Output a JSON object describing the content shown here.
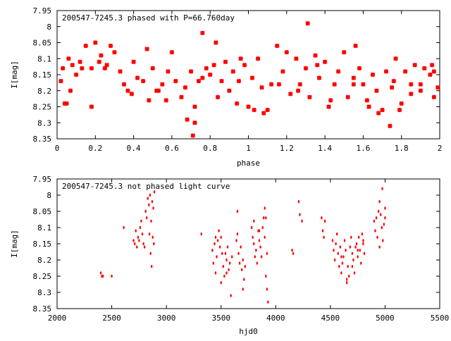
{
  "chart_data": [
    {
      "type": "scatter",
      "title": "200547-7245.3 phased with P=66.760day",
      "xlabel": "phase",
      "ylabel": "I[mag]",
      "xlim": [
        0,
        2
      ],
      "ylim": [
        8.35,
        7.95
      ],
      "y_inverted": true,
      "grid": false,
      "xticks": [
        "0",
        "0.2",
        "0.4",
        "0.6",
        "0.8",
        "1",
        "1.2",
        "1.4",
        "1.6",
        "1.8",
        "2"
      ],
      "yticks": [
        "7.95",
        "8",
        "8.05",
        "8.1",
        "8.15",
        "8.2",
        "8.25",
        "8.3",
        "8.35"
      ],
      "marker_color": "#ff0000",
      "series": [
        {
          "x": [
            0.02,
            0.04,
            0.06,
            0.08,
            0.1,
            0.03,
            0.05,
            0.07,
            0.12,
            0.15,
            0.18,
            0.2,
            0.22,
            0.25,
            0.28,
            0.3,
            0.33,
            0.35,
            0.37,
            0.4,
            0.42,
            0.45,
            0.47,
            0.5,
            0.52,
            0.55,
            0.58,
            0.6,
            0.62,
            0.65,
            0.67,
            0.7,
            0.72,
            0.74,
            0.76,
            0.78,
            0.8,
            0.82,
            0.84,
            0.86,
            0.88,
            0.9,
            0.92,
            0.95,
            0.98,
            1.0,
            1.02,
            1.05,
            1.07,
            1.1,
            1.12,
            1.15,
            1.18,
            1.2,
            1.22,
            1.25,
            1.27,
            1.3,
            1.32,
            1.35,
            1.37,
            1.4,
            1.42,
            1.45,
            1.47,
            1.5,
            1.52,
            1.55,
            1.58,
            1.6,
            1.62,
            1.65,
            1.67,
            1.7,
            1.72,
            1.75,
            1.77,
            1.8,
            1.82,
            1.85,
            1.87,
            1.9,
            1.92,
            1.95,
            1.97,
            1.99,
            0.18,
            0.26,
            0.48,
            0.53,
            0.68,
            0.71,
            0.72,
            0.83,
            0.94,
            1.03,
            1.08,
            1.26,
            1.31,
            1.43,
            1.55,
            1.63,
            1.68,
            1.74,
            1.79,
            1.85,
            1.9,
            1.97,
            0.13,
            0.23,
            0.39,
            0.57,
            0.76,
            0.96,
            1.16,
            1.36,
            1.56,
            1.76,
            1.96
          ],
          "y": [
            8.17,
            8.24,
            8.1,
            8.12,
            8.15,
            8.13,
            8.24,
            8.2,
            8.11,
            8.06,
            8.13,
            8.05,
            8.11,
            8.13,
            8.06,
            8.08,
            8.14,
            8.18,
            8.2,
            8.11,
            8.16,
            8.17,
            8.07,
            8.13,
            8.2,
            8.18,
            8.14,
            8.08,
            8.17,
            8.22,
            8.19,
            8.14,
            8.25,
            8.17,
            8.16,
            8.13,
            8.15,
            8.12,
            8.22,
            8.17,
            8.11,
            8.2,
            8.14,
            8.17,
            8.12,
            8.25,
            8.16,
            8.1,
            8.19,
            8.26,
            8.18,
            8.06,
            8.14,
            8.08,
            8.21,
            8.1,
            8.18,
            8.13,
            8.22,
            8.09,
            8.16,
            8.11,
            8.25,
            8.18,
            8.14,
            8.08,
            8.22,
            8.16,
            8.13,
            8.18,
            8.23,
            8.15,
            8.2,
            8.26,
            8.14,
            8.19,
            8.1,
            8.24,
            8.14,
            8.21,
            8.12,
            8.18,
            8.13,
            8.15,
            8.22,
            8.19,
            8.25,
            8.12,
            8.23,
            8.2,
            8.29,
            8.34,
            8.3,
            8.05,
            8.24,
            8.26,
            8.27,
            8.2,
            7.99,
            8.23,
            8.18,
            8.25,
            8.27,
            8.31,
            8.26,
            8.18,
            8.2,
            8.14,
            8.13,
            8.09,
            8.21,
            8.23,
            8.02,
            8.1,
            8.18,
            8.12,
            8.06,
            8.17,
            8.12
          ]
        }
      ]
    },
    {
      "type": "scatter",
      "title": "200547-7245.3 not phased light curve",
      "xlabel": "hjd0",
      "ylabel": "I[mag]",
      "xlim": [
        2000,
        5500
      ],
      "ylim": [
        8.35,
        7.95
      ],
      "y_inverted": true,
      "grid": false,
      "xticks": [
        "2000",
        "2500",
        "3000",
        "3500",
        "4000",
        "4500",
        "5000",
        "5500"
      ],
      "yticks": [
        "7.95",
        "8",
        "8.05",
        "8.1",
        "8.15",
        "8.2",
        "8.25",
        "8.3",
        "8.35"
      ],
      "marker_color": "#ff0000",
      "series": [
        {
          "x": [
            2400,
            2410,
            2420,
            2500,
            2610,
            2700,
            2710,
            2720,
            2730,
            2740,
            2750,
            2760,
            2770,
            2780,
            2790,
            2800,
            2810,
            2820,
            2830,
            2840,
            2850,
            2860,
            2870,
            2880,
            2890,
            2845,
            2855,
            2865,
            2875,
            2885,
            3320,
            3420,
            3430,
            3440,
            3450,
            3460,
            3470,
            3480,
            3490,
            3500,
            3510,
            3520,
            3530,
            3540,
            3550,
            3560,
            3570,
            3580,
            3590,
            3450,
            3500,
            3550,
            3600,
            3640,
            3650,
            3660,
            3670,
            3680,
            3690,
            3700,
            3710,
            3720,
            3650,
            3700,
            3780,
            3790,
            3800,
            3810,
            3820,
            3830,
            3840,
            3850,
            3860,
            3870,
            3880,
            3890,
            3900,
            3910,
            3920,
            3930,
            3800,
            3850,
            3900,
            3910,
            3920,
            4150,
            4160,
            4210,
            4220,
            4240,
            4420,
            4430,
            4440,
            4450,
            4520,
            4530,
            4540,
            4550,
            4560,
            4570,
            4580,
            4590,
            4600,
            4610,
            4620,
            4630,
            4640,
            4650,
            4660,
            4670,
            4680,
            4690,
            4700,
            4710,
            4720,
            4730,
            4740,
            4750,
            4760,
            4770,
            4780,
            4790,
            4800,
            4810,
            4600,
            4650,
            4700,
            4750,
            4800,
            4900,
            4910,
            4920,
            4930,
            4940,
            4950,
            4960,
            4970,
            4980,
            4990,
            5000,
            4950,
            4975,
            5000
          ],
          "y": [
            8.24,
            8.25,
            8.25,
            8.25,
            8.1,
            8.14,
            8.15,
            8.11,
            8.16,
            8.13,
            8.14,
            8.1,
            8.08,
            8.12,
            8.15,
            8.16,
            8.05,
            8.07,
            8.01,
            8.03,
            8.0,
            8.08,
            8.02,
            8.04,
            7.99,
            8.12,
            8.18,
            8.22,
            8.13,
            8.15,
            8.12,
            8.17,
            8.21,
            8.15,
            8.13,
            8.19,
            8.14,
            8.11,
            8.16,
            8.13,
            8.18,
            8.22,
            8.25,
            8.18,
            8.2,
            8.16,
            8.23,
            8.21,
            8.31,
            8.24,
            8.27,
            8.24,
            8.19,
            8.14,
            8.12,
            8.18,
            8.21,
            8.16,
            8.23,
            8.2,
            8.26,
            8.22,
            8.05,
            8.29,
            8.1,
            8.13,
            8.15,
            8.19,
            8.17,
            8.21,
            8.11,
            8.14,
            8.16,
            8.19,
            8.1,
            8.07,
            8.13,
            8.25,
            8.29,
            8.33,
            8.08,
            8.11,
            8.04,
            8.07,
            8.18,
            8.17,
            8.18,
            8.02,
            8.06,
            8.08,
            8.07,
            8.11,
            8.13,
            8.08,
            8.14,
            8.17,
            8.2,
            8.15,
            8.12,
            8.18,
            8.22,
            8.16,
            8.24,
            8.21,
            8.19,
            8.14,
            8.17,
            8.27,
            8.22,
            8.25,
            8.16,
            8.13,
            8.18,
            8.2,
            8.24,
            8.16,
            8.15,
            8.19,
            8.13,
            8.17,
            8.21,
            8.12,
            8.14,
            8.18,
            8.19,
            8.26,
            8.22,
            8.17,
            8.15,
            8.08,
            8.11,
            8.07,
            8.13,
            8.05,
            8.02,
            8.06,
            8.1,
            8.14,
            8.09,
            8.07,
            8.16,
            7.98,
            8.04
          ],
          "marker": "dot"
        }
      ]
    }
  ]
}
